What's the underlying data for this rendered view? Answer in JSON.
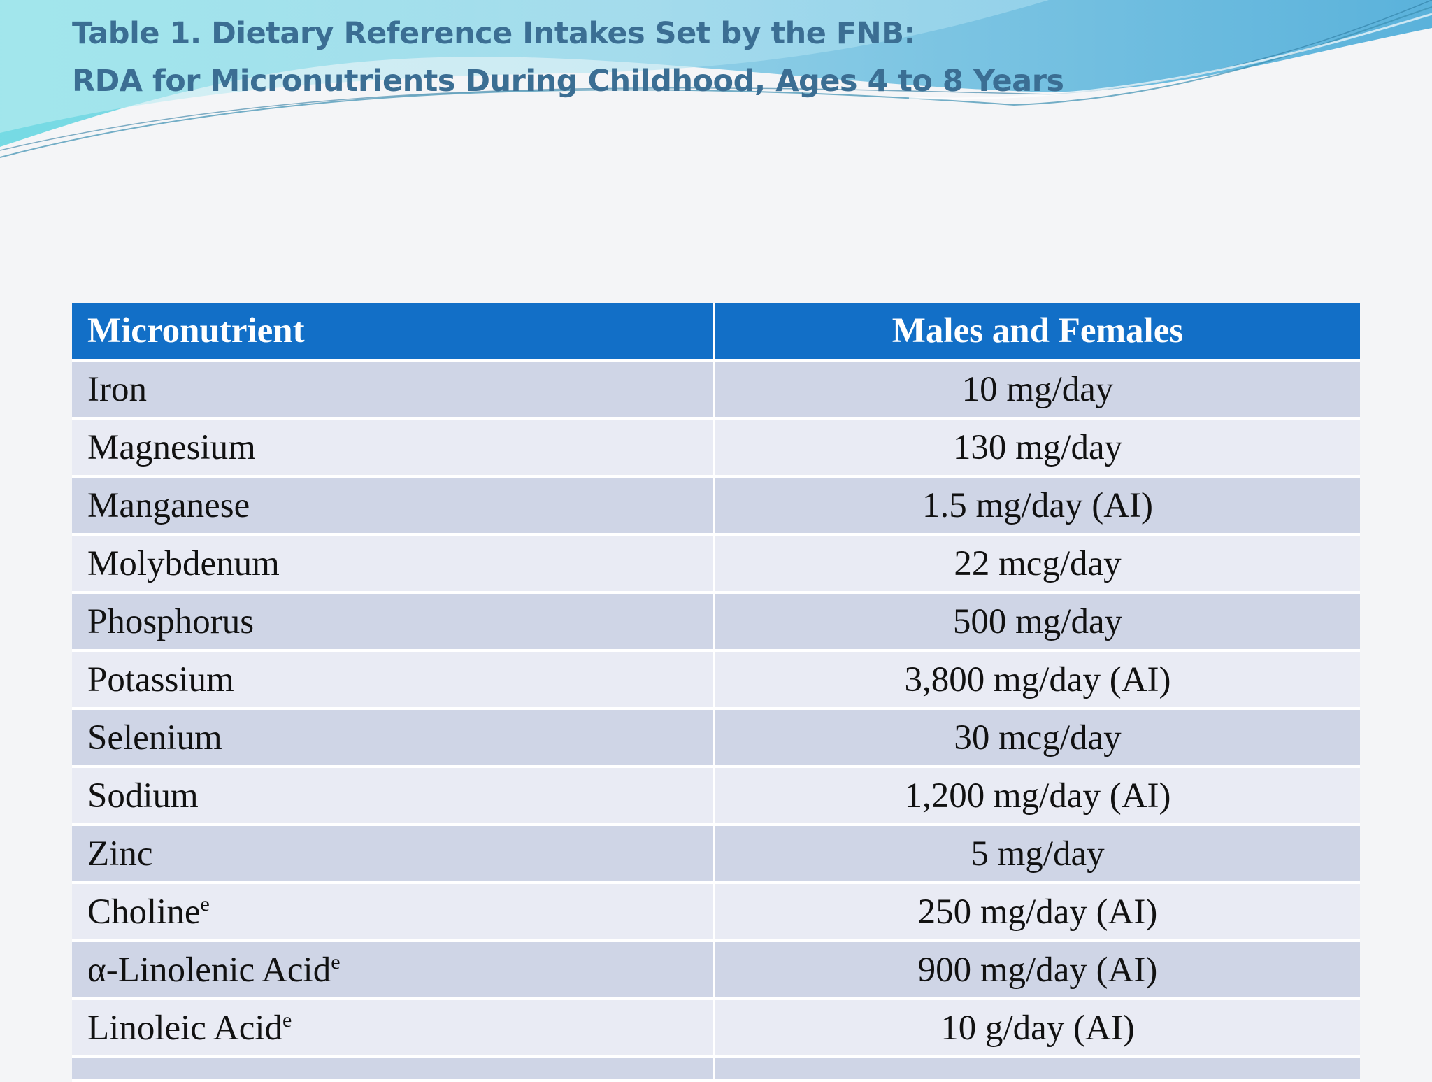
{
  "title": {
    "line1": "Table 1. Dietary Reference Intakes Set by the FNB:",
    "line2": "RDA for Micronutrients During Childhood, Ages 4 to 8 Years"
  },
  "colors": {
    "title": "#3b6e93",
    "header_bg": "#126fc7",
    "row_dark": "#cfd5e6",
    "row_light": "#e9ebf4",
    "wave": "#5fc4da"
  },
  "table": {
    "headers": [
      "Micronutrient",
      "Males and Females"
    ],
    "rows": [
      {
        "name": "Iron",
        "sup": "",
        "value": "10 mg/day"
      },
      {
        "name": "Magnesium",
        "sup": "",
        "value": "130 mg/day"
      },
      {
        "name": "Manganese",
        "sup": "",
        "value": "1.5 mg/day (AI)"
      },
      {
        "name": "Molybdenum",
        "sup": "",
        "value": "22 mcg/day"
      },
      {
        "name": "Phosphorus",
        "sup": "",
        "value": "500 mg/day"
      },
      {
        "name": "Potassium",
        "sup": "",
        "value": "3,800 mg/day (AI)"
      },
      {
        "name": "Selenium",
        "sup": "",
        "value": "30 mcg/day"
      },
      {
        "name": "Sodium",
        "sup": "",
        "value": "1,200 mg/day (AI)"
      },
      {
        "name": "Zinc",
        "sup": "",
        "value": "5 mg/day"
      },
      {
        "name": "Choline",
        "sup": "e",
        "value": "250 mg/day (AI)"
      },
      {
        "name": "α-Linolenic Acid",
        "sup": "e",
        "value": "900 mg/day (AI)"
      },
      {
        "name": "Linoleic Acid",
        "sup": "e",
        "value": "10 g/day (AI)"
      }
    ]
  }
}
